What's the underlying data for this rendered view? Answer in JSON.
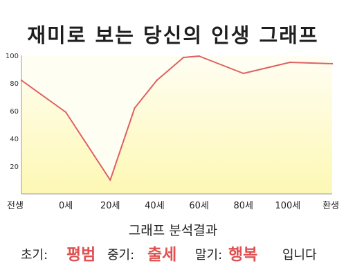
{
  "title": "재미로 보는 당신의 인생 그래프",
  "chart_data": {
    "type": "area",
    "x_labels": [
      "전생",
      "0세",
      "20세",
      "40세",
      "60세",
      "80세",
      "100세",
      "환생"
    ],
    "x_label_positions": [
      -20,
      0,
      20,
      40,
      60,
      80,
      100,
      120
    ],
    "points": [
      {
        "x": -20,
        "y": 82
      },
      {
        "x": 0,
        "y": 59
      },
      {
        "x": 20,
        "y": 10
      },
      {
        "x": 31,
        "y": 62
      },
      {
        "x": 41,
        "y": 82
      },
      {
        "x": 53,
        "y": 98.5
      },
      {
        "x": 60,
        "y": 99.5
      },
      {
        "x": 80,
        "y": 87
      },
      {
        "x": 101,
        "y": 95
      },
      {
        "x": 120,
        "y": 94
      }
    ],
    "y_ticks": [
      20,
      40,
      60,
      80,
      100
    ],
    "ylim": [
      0,
      100
    ],
    "xlim": [
      -20,
      120
    ],
    "grid": false,
    "colors": {
      "line": "#e06060",
      "fill": "#fdf8b4",
      "fill_top": "#fffef2",
      "axis": "#999999"
    }
  },
  "summary": {
    "heading": "그래프 분석결과",
    "early_label": "초기:",
    "early_value": "평범",
    "middle_label": "중기:",
    "middle_value": "출세",
    "late_label": "말기:",
    "late_value": "행복",
    "closing": "입니다"
  }
}
